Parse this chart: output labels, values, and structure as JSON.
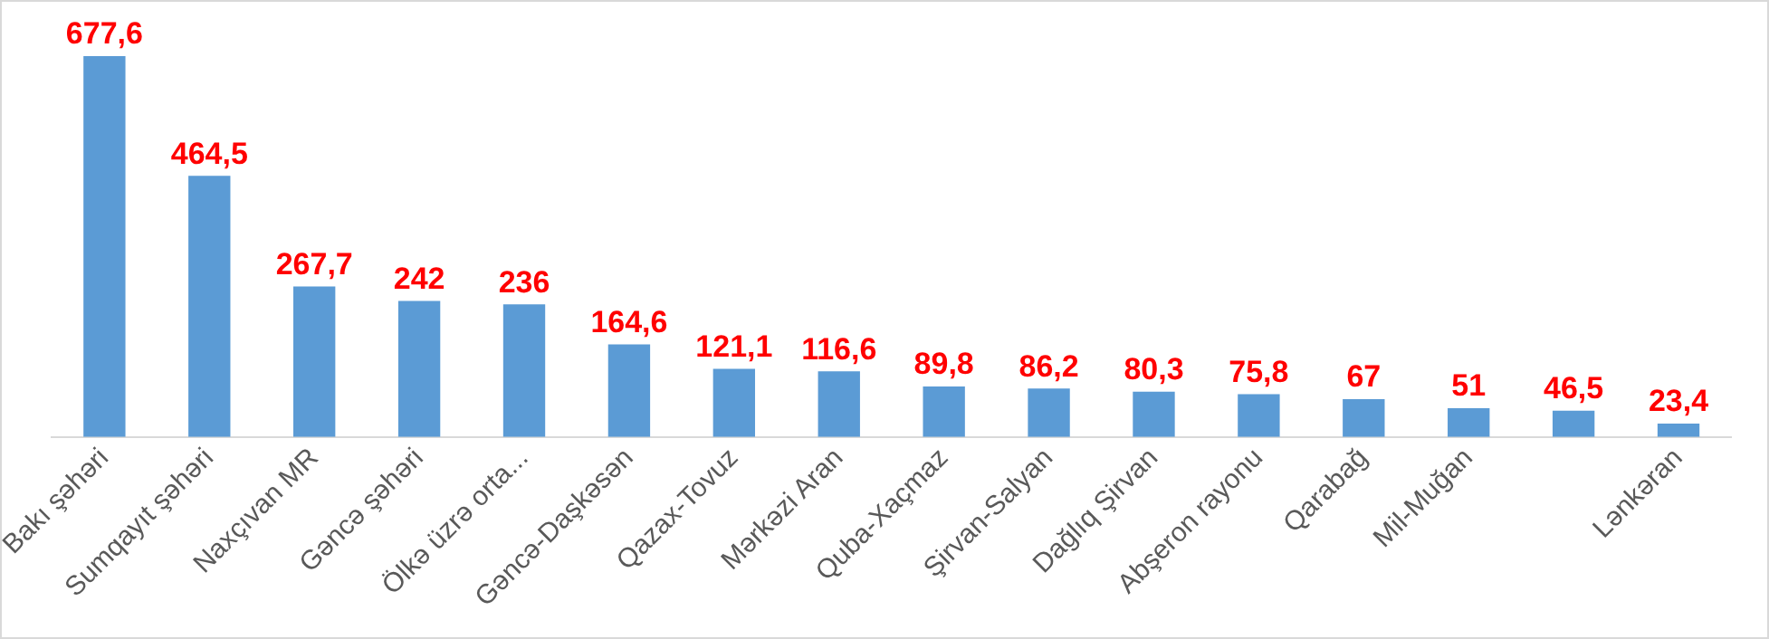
{
  "chart_data": {
    "type": "bar",
    "categories": [
      "Bakı şəhəri",
      "Sumqayıt şəhəri",
      "Naxçıvan MR",
      "Gəncə şəhəri",
      "Ölkə üzrə orta...",
      "Gəncə-Daşkəsən",
      "Qazax-Tovuz",
      "Mərkəzi Aran",
      "Quba-Xaçmaz",
      "Şirvan-Salyan",
      "Dağlıq Şirvan",
      "Abşeron rayonu",
      "Qarabağ",
      "Mil-Muğan",
      null,
      "Lənkəran"
    ],
    "values": [
      677.6,
      464.5,
      267.7,
      242,
      236,
      164.6,
      121.1,
      116.6,
      89.8,
      86.2,
      80.3,
      75.8,
      67,
      51,
      46.5,
      23.4
    ],
    "value_labels": [
      "677,6",
      "464,5",
      "267,7",
      "242",
      "236",
      "164,6",
      "121,1",
      "116,6",
      "89,8",
      "86,2",
      "80,3",
      "75,8",
      "67",
      "51",
      "46,5",
      "23,4"
    ],
    "color": "#5b9bd5",
    "grid": false,
    "legend": false
  }
}
